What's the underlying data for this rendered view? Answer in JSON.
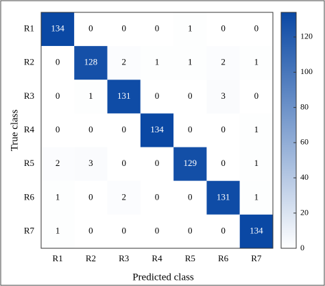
{
  "chart_data": {
    "type": "heatmap",
    "x_label": "Predicted class",
    "y_label": "True class",
    "x_categories": [
      "R1",
      "R2",
      "R3",
      "R4",
      "R5",
      "R6",
      "R7"
    ],
    "y_categories": [
      "R1",
      "R2",
      "R3",
      "R4",
      "R5",
      "R6",
      "R7"
    ],
    "values": [
      [
        134,
        0,
        0,
        0,
        1,
        0,
        0
      ],
      [
        0,
        128,
        2,
        1,
        1,
        2,
        1
      ],
      [
        0,
        1,
        131,
        0,
        0,
        3,
        0
      ],
      [
        0,
        0,
        0,
        134,
        0,
        0,
        1
      ],
      [
        2,
        3,
        0,
        0,
        129,
        0,
        1
      ],
      [
        1,
        0,
        2,
        0,
        0,
        131,
        1
      ],
      [
        1,
        0,
        0,
        0,
        0,
        0,
        134
      ]
    ],
    "clim": [
      0,
      134
    ],
    "cticks": [
      0,
      20,
      40,
      60,
      80,
      100,
      120
    ],
    "colors": [
      "#ffffff",
      "#0a48a4"
    ]
  }
}
